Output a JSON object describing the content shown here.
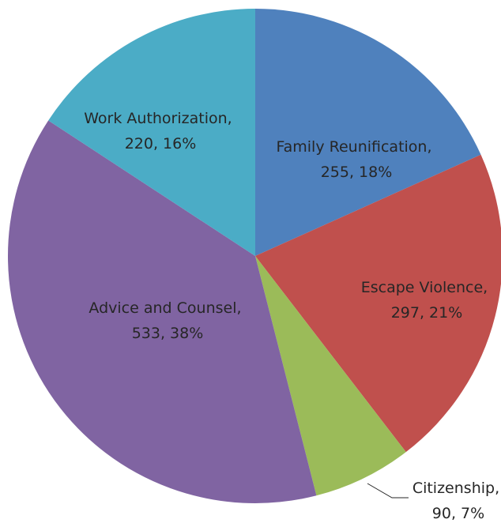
{
  "chart_data": {
    "type": "pie",
    "title": "",
    "categories": [
      "Family Reunification",
      "Escape Violence",
      "Citizenship",
      "Advice and Counsel",
      "Work Authorization"
    ],
    "values": [
      255,
      297,
      90,
      533,
      220
    ],
    "percent_labels": [
      "18%",
      "21%",
      "7%",
      "38%",
      "16%"
    ],
    "colors": [
      "#4F81BD",
      "#C0504D",
      "#9BBB59",
      "#8064A2",
      "#4BACC6"
    ],
    "start_angle_deg": 0,
    "direction": "clockwise",
    "legend": "none",
    "labels": [
      {
        "line1": "Family Reunification,",
        "line2": "255, 18%"
      },
      {
        "line1": "Escape Violence,",
        "line2": "297, 21%"
      },
      {
        "line1": "Citizenship,",
        "line2": "90, 7%"
      },
      {
        "line1": "Advice and Counsel,",
        "line2": "533, 38%"
      },
      {
        "line1": "Work Authorization,",
        "line2": "220, 16%"
      }
    ]
  }
}
